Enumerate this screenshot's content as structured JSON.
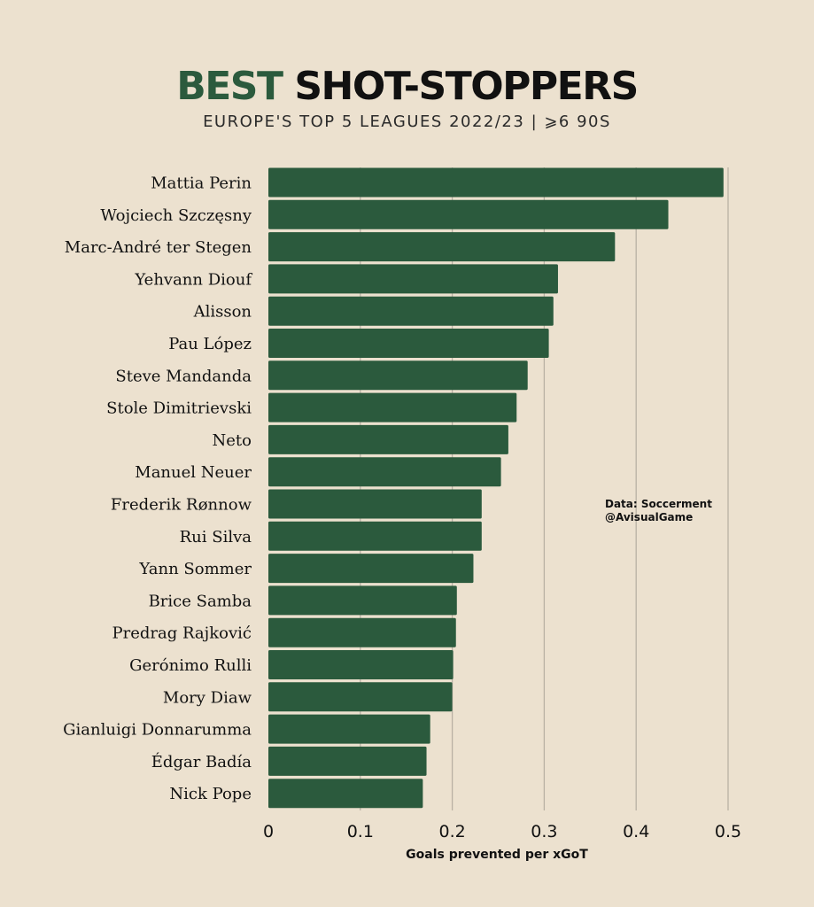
{
  "header": {
    "title_accent": "BEST",
    "title_rest": " SHOT-STOPPERS",
    "subtitle": "EUROPE'S TOP 5 LEAGUES 2022/23  |  ⩾6 90S"
  },
  "source": {
    "line1": "Data: Soccerment",
    "line2": "@AvisualGame"
  },
  "colors": {
    "background": "#ece1cf",
    "bar": "#2b5a3d",
    "accent": "#2b5a3d",
    "gridline": "#b9b1a4",
    "text": "#111111"
  },
  "chart_data": {
    "type": "bar",
    "orientation": "horizontal",
    "categories": [
      "Mattia Perin",
      "Wojciech Szczęsny",
      "Marc-André ter Stegen",
      "Yehvann Diouf",
      "Alisson",
      "Pau López",
      "Steve Mandanda",
      "Stole Dimitrievski",
      "Neto",
      "Manuel Neuer",
      "Frederik Rønnow",
      "Rui Silva",
      "Yann Sommer",
      "Brice Samba",
      "Predrag Rajković",
      "Gerónimo Rulli",
      "Mory Diaw",
      "Gianluigi Donnarumma",
      "Édgar Badía",
      "Nick Pope"
    ],
    "values": [
      0.495,
      0.435,
      0.377,
      0.315,
      0.31,
      0.305,
      0.282,
      0.27,
      0.261,
      0.253,
      0.232,
      0.232,
      0.223,
      0.205,
      0.204,
      0.201,
      0.2,
      0.176,
      0.172,
      0.168
    ],
    "xlim": [
      0,
      0.5
    ],
    "xticks": [
      0,
      0.1,
      0.2,
      0.3,
      0.4,
      0.5
    ],
    "xtick_labels": [
      "0",
      "0.1",
      "0.2",
      "0.3",
      "0.4",
      "0.5"
    ],
    "xlabel": "Goals prevented per xGoT",
    "ylabel": "",
    "grid": true
  }
}
